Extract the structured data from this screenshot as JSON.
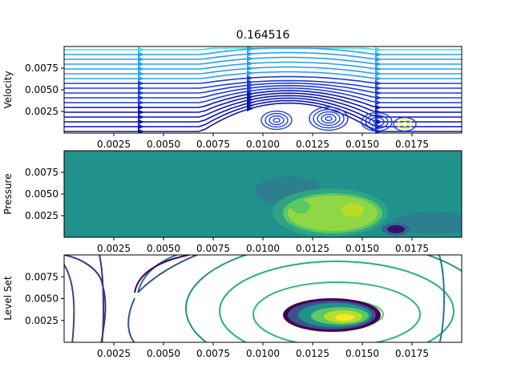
{
  "figure": {
    "title": "0.164516"
  },
  "chart_data": [
    {
      "type": "streamplot",
      "ylabel": "Velocity",
      "xlim": [
        0,
        0.02
      ],
      "ylim": [
        0,
        0.01
      ],
      "x_ticks": [
        "0.0025",
        "0.0050",
        "0.0075",
        "0.0100",
        "0.0125",
        "0.0150",
        "0.0175"
      ],
      "x_tick_values": [
        0.0025,
        0.005,
        0.0075,
        0.01,
        0.0125,
        0.015,
        0.0175
      ],
      "y_ticks": [
        "0.0025",
        "0.0050",
        "0.0075"
      ],
      "y_tick_values": [
        0.0025,
        0.005,
        0.0075
      ],
      "colormap": [
        "#0a14b4",
        "#1e3ce0",
        "#2aa0f0",
        "#30e0e0",
        "#80f0a0",
        "#e6f040"
      ]
    },
    {
      "type": "contourf",
      "ylabel": "Pressure",
      "xlim": [
        0,
        0.02
      ],
      "ylim": [
        0,
        0.01
      ],
      "x_ticks": [
        "0.0025",
        "0.0050",
        "0.0075",
        "0.0100",
        "0.0125",
        "0.0150",
        "0.0175"
      ],
      "x_tick_values": [
        0.0025,
        0.005,
        0.0075,
        0.01,
        0.0125,
        0.015,
        0.0175
      ],
      "y_ticks": [
        "0.0025",
        "0.0050",
        "0.0075"
      ],
      "y_tick_values": [
        0.0025,
        0.005,
        0.0075
      ],
      "background_color": "#21918c",
      "colormap": [
        "#3b0f70",
        "#31688e",
        "#21918c",
        "#35b779",
        "#90d743",
        "#fde725"
      ]
    },
    {
      "type": "contour",
      "ylabel": "Level Set",
      "xlim": [
        0,
        0.02
      ],
      "ylim": [
        0,
        0.01
      ],
      "x_ticks": [
        "0.0025",
        "0.0050",
        "0.0075",
        "0.0100",
        "0.0125",
        "0.0150",
        "0.0175"
      ],
      "x_tick_values": [
        0.0025,
        0.005,
        0.0075,
        0.01,
        0.0125,
        0.015,
        0.0175
      ],
      "y_ticks": [
        "0.0025",
        "0.0050",
        "0.0075"
      ],
      "y_tick_values": [
        0.0025,
        0.005,
        0.0075
      ],
      "colormap": [
        "#440154",
        "#3b528b",
        "#21918c",
        "#5ec962",
        "#fde725"
      ]
    }
  ]
}
